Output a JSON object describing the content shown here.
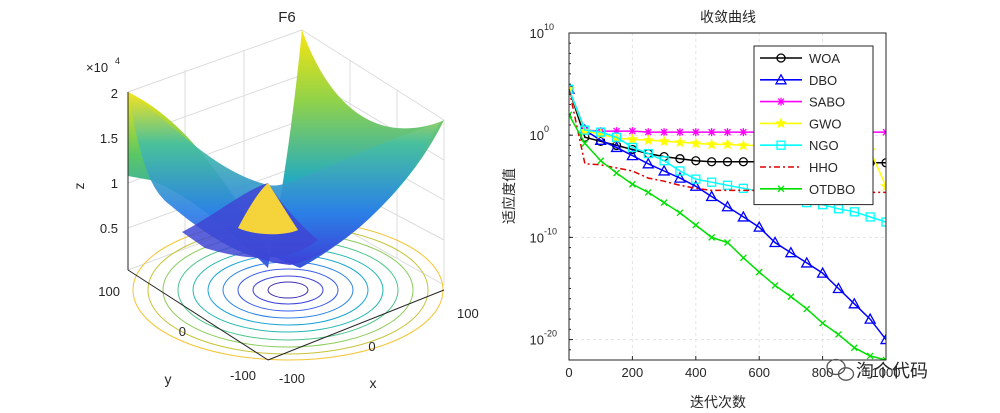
{
  "watermark": {
    "text": "淘个代码",
    "icon": "wechat-icon"
  },
  "chart_data": [
    {
      "type": "surface3d",
      "title": "F6",
      "xlabel": "x",
      "ylabel": "y",
      "zlabel": "z",
      "z_exponent_label": "×10",
      "z_exponent_power": "4",
      "xlim": [
        -100,
        100
      ],
      "ylim": [
        -100,
        100
      ],
      "zlim": [
        0,
        20000
      ],
      "x_ticks": [
        "-100",
        "0",
        "100"
      ],
      "y_ticks": [
        "-100",
        "0",
        "100"
      ],
      "z_ticks": [
        "0.5",
        "1",
        "1.5",
        "2"
      ],
      "function": "sum of squares of floor(x+0.5)",
      "colormap": "parula"
    },
    {
      "type": "line",
      "title": "收敛曲线",
      "xlabel": "迭代次数",
      "ylabel": "适应度值",
      "yscale": "log",
      "xlim": [
        0,
        1000
      ],
      "ylim_exponent": [
        -22,
        10
      ],
      "x_ticks": [
        "0",
        "200",
        "400",
        "600",
        "800",
        "1000"
      ],
      "y_ticks": [
        {
          "base": "10",
          "exp": "10"
        },
        {
          "base": "10",
          "exp": "0"
        },
        {
          "base": "10",
          "exp": "-10"
        },
        {
          "base": "10",
          "exp": "-20"
        }
      ],
      "grid": true,
      "legend_position": "top-right",
      "x": [
        0,
        50,
        100,
        150,
        200,
        250,
        300,
        350,
        400,
        450,
        500,
        550,
        600,
        650,
        700,
        750,
        800,
        850,
        900,
        950,
        1000
      ],
      "series": [
        {
          "name": "WOA",
          "color": "#000000",
          "marker": "circle",
          "dash": "",
          "log10_values": [
            4.5,
            -0.2,
            -0.6,
            -1.0,
            -1.4,
            -1.8,
            -2.1,
            -2.3,
            -2.5,
            -2.6,
            -2.6,
            -2.6,
            -2.6,
            -2.6,
            -2.7,
            -2.7,
            -2.7,
            -2.7,
            -2.7,
            -2.7,
            -2.7
          ]
        },
        {
          "name": "DBO",
          "color": "#0000ff",
          "marker": "triangle",
          "dash": "",
          "log10_values": [
            4.5,
            0.5,
            -0.5,
            -1.2,
            -2.0,
            -2.8,
            -3.5,
            -4.2,
            -5.0,
            -6.0,
            -7.0,
            -8.0,
            -9.0,
            -10.5,
            -11.5,
            -12.5,
            -13.5,
            -15.0,
            -16.5,
            -18.0,
            -20.0
          ]
        },
        {
          "name": "SABO",
          "color": "#ff00ff",
          "marker": "star",
          "dash": "",
          "log10_values": [
            4.5,
            0.5,
            0.4,
            0.4,
            0.4,
            0.3,
            0.3,
            0.3,
            0.3,
            0.3,
            0.3,
            0.3,
            0.3,
            0.3,
            0.3,
            0.3,
            0.3,
            0.3,
            0.3,
            0.3,
            0.3
          ]
        },
        {
          "name": "GWO",
          "color": "#ffff00",
          "marker": "star5",
          "dash": "",
          "log10_values": [
            4.5,
            0.4,
            0.1,
            -0.3,
            -0.4,
            -0.5,
            -0.6,
            -0.7,
            -0.8,
            -0.9,
            -0.9,
            -1.0,
            -1.0,
            -1.0,
            -1.0,
            -1.0,
            -1.1,
            -1.1,
            -1.2,
            -1.5,
            -5.0
          ]
        },
        {
          "name": "NGO",
          "color": "#00ffff",
          "marker": "square",
          "dash": "",
          "log10_values": [
            4.5,
            0.5,
            0.3,
            -0.2,
            -1.2,
            -1.8,
            -2.5,
            -3.5,
            -4.3,
            -4.6,
            -4.9,
            -5.2,
            -5.5,
            -6.2,
            -6.3,
            -6.6,
            -6.8,
            -7.2,
            -7.5,
            -8.0,
            -8.5
          ]
        },
        {
          "name": "HHO",
          "color": "#e00000",
          "marker": "none",
          "dash": "6,3,2,3",
          "log10_values": [
            4.5,
            -2.8,
            -2.9,
            -3.2,
            -3.5,
            -4.2,
            -4.5,
            -4.9,
            -5.2,
            -5.4,
            -5.4,
            -5.4,
            -5.4,
            -5.4,
            -5.5,
            -5.5,
            -5.6,
            -5.6,
            -5.6,
            -5.6,
            -5.6
          ]
        },
        {
          "name": "OTDBO",
          "color": "#00e000",
          "marker": "x",
          "dash": "",
          "log10_values": [
            2.0,
            -0.8,
            -2.5,
            -3.7,
            -4.8,
            -5.6,
            -6.6,
            -7.6,
            -8.8,
            -10.0,
            -10.5,
            -12.0,
            -13.4,
            -14.7,
            -15.8,
            -17.0,
            -18.4,
            -19.5,
            -20.8,
            -21.6,
            -22.0
          ]
        }
      ]
    }
  ]
}
